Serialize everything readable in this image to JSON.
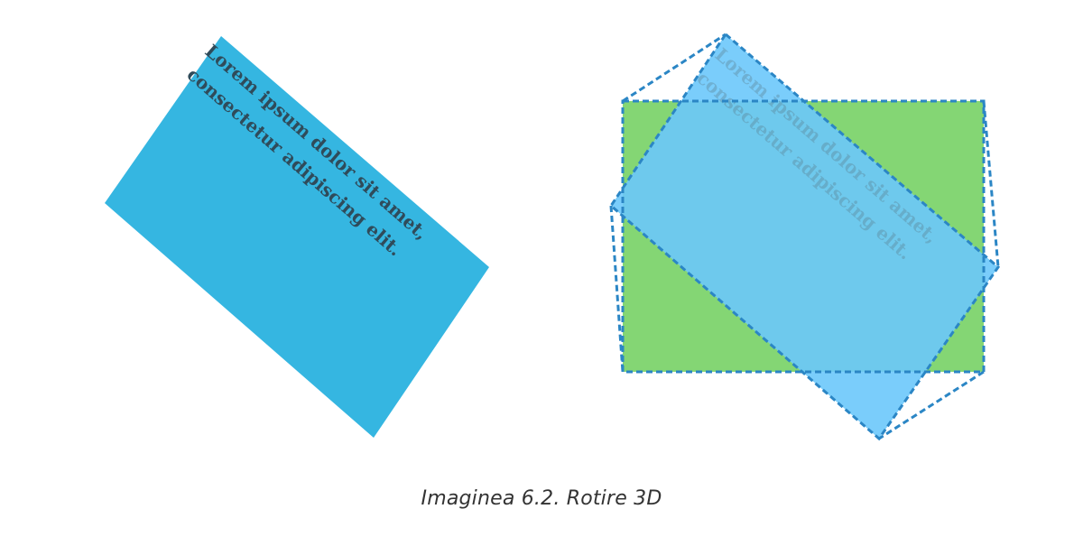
{
  "left_figure": {
    "fill": "#35b6e1",
    "text_line_1": "Lorem ipsum dolor sit amet,",
    "text_line_2": "consectetur adipiscing elit."
  },
  "right_figure": {
    "green_fill": "#84d674",
    "blue_fill": "#72c7f6",
    "overlap_fill": "#78cfe0",
    "dashed_stroke": "#2b86c5",
    "faded_text_line_1": "Lorem ipsum dolor sit amet,",
    "faded_text_line_2": "consectetur adipiscing elit."
  },
  "caption": {
    "text": "Imaginea 6.2. Rotire 3D"
  }
}
